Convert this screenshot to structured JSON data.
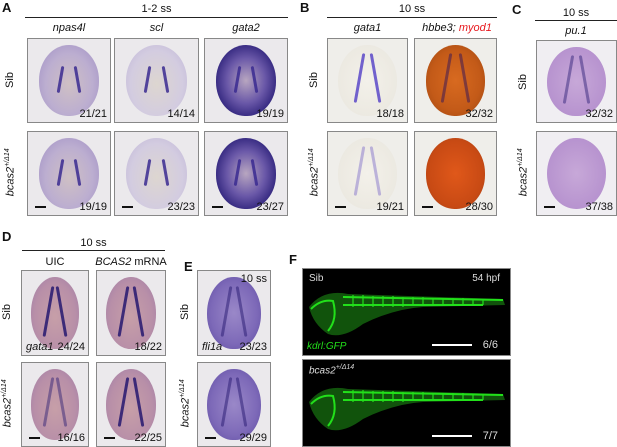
{
  "mutant": {
    "base": "bcas2",
    "sup": "+/Δ14"
  },
  "sib": "Sib",
  "A": {
    "letter": "A",
    "stage": "1-2 ss",
    "genes": [
      "npas4l",
      "scl",
      "gata2"
    ],
    "counts": [
      [
        "21/21",
        "14/14",
        "19/19"
      ],
      [
        "19/19",
        "23/23",
        "23/27"
      ]
    ]
  },
  "B": {
    "letter": "B",
    "stage": "10 ss",
    "genes": [
      "gata1",
      "hbbe3;",
      "myod1"
    ],
    "counts": [
      [
        "18/18",
        "32/32"
      ],
      [
        "19/21",
        "28/30"
      ]
    ],
    "colors": {
      "myod1": "#e8181e"
    }
  },
  "C": {
    "letter": "C",
    "stage": "10 ss",
    "gene": "pu.1",
    "counts": [
      "32/32",
      "37/38"
    ]
  },
  "D": {
    "letter": "D",
    "stage": "10 ss",
    "columns": [
      "UIC",
      "BCAS2",
      "mRNA"
    ],
    "gene": "gata1",
    "counts": [
      [
        "24/24",
        "18/22"
      ],
      [
        "16/16",
        "22/25"
      ]
    ]
  },
  "E": {
    "letter": "E",
    "stage": "10 ss",
    "gene": "fli1a",
    "counts": [
      "23/23",
      "29/29"
    ]
  },
  "F": {
    "letter": "F",
    "time": "54 hpf",
    "reporter": "kdrl:GFP",
    "counts": [
      "6/6",
      "7/7"
    ],
    "colors": {
      "gfp": "#22e01a"
    }
  }
}
